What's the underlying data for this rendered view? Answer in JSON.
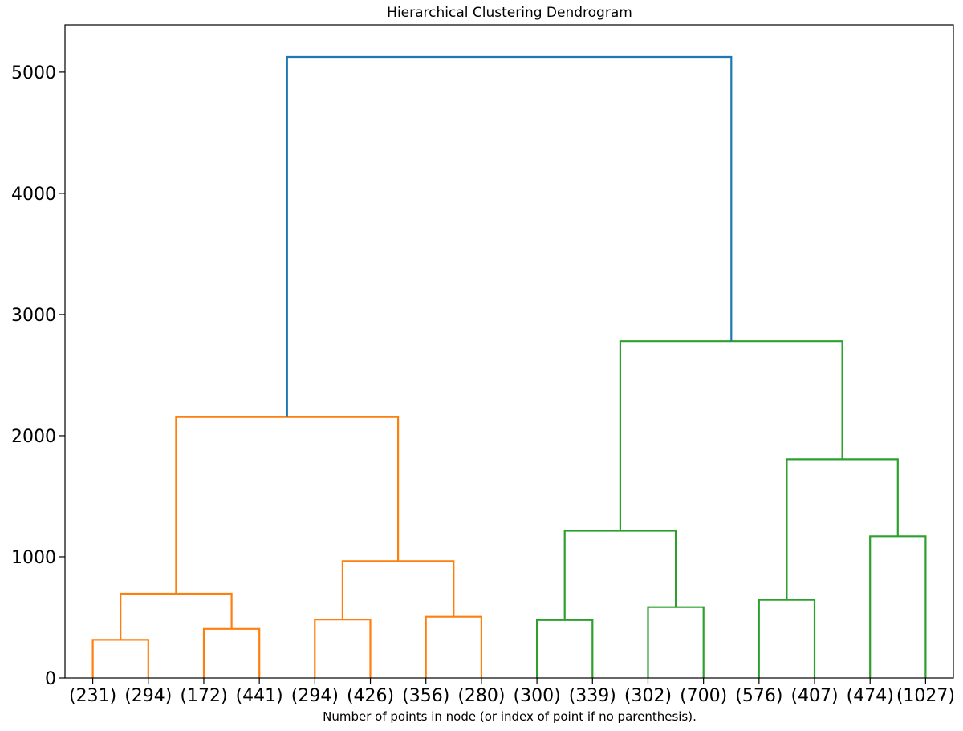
{
  "chart_data": {
    "type": "dendrogram",
    "title": "Hierarchical Clustering Dendrogram",
    "xlabel": "Number of points in node (or index of point if no parenthesis).",
    "ylabel": "",
    "ylim": [
      0,
      5390
    ],
    "yticks": [
      0,
      1000,
      2000,
      3000,
      4000,
      5000
    ],
    "leaf_labels": [
      "(231)",
      "(294)",
      "(172)",
      "(441)",
      "(294)",
      "(426)",
      "(356)",
      "(280)",
      "(300)",
      "(339)",
      "(302)",
      "(700)",
      "(576)",
      "(407)",
      "(474)",
      "(1027)"
    ],
    "colors": {
      "orange": "#ff7f0e",
      "green": "#2ca02c",
      "blue": "#1f77b4"
    },
    "merges": [
      {
        "id": "o1",
        "left": "leaf:0",
        "right": "leaf:1",
        "height": 315,
        "color": "orange"
      },
      {
        "id": "o2",
        "left": "leaf:2",
        "right": "leaf:3",
        "height": 405,
        "color": "orange"
      },
      {
        "id": "o3",
        "left": "node:o1",
        "right": "node:o2",
        "height": 695,
        "color": "orange"
      },
      {
        "id": "o4",
        "left": "leaf:4",
        "right": "leaf:5",
        "height": 483,
        "color": "orange"
      },
      {
        "id": "o5",
        "left": "leaf:6",
        "right": "leaf:7",
        "height": 505,
        "color": "orange"
      },
      {
        "id": "o6",
        "left": "node:o4",
        "right": "node:o5",
        "height": 965,
        "color": "orange"
      },
      {
        "id": "o7",
        "left": "node:o3",
        "right": "node:o6",
        "height": 2155,
        "color": "orange"
      },
      {
        "id": "g1",
        "left": "leaf:8",
        "right": "leaf:9",
        "height": 478,
        "color": "green"
      },
      {
        "id": "g2",
        "left": "leaf:10",
        "right": "leaf:11",
        "height": 585,
        "color": "green"
      },
      {
        "id": "g3",
        "left": "node:g1",
        "right": "node:g2",
        "height": 1215,
        "color": "green"
      },
      {
        "id": "g4",
        "left": "leaf:12",
        "right": "leaf:13",
        "height": 645,
        "color": "green"
      },
      {
        "id": "g5",
        "left": "leaf:14",
        "right": "leaf:15",
        "height": 1170,
        "color": "green"
      },
      {
        "id": "g6",
        "left": "node:g4",
        "right": "node:g5",
        "height": 1805,
        "color": "green"
      },
      {
        "id": "g7",
        "left": "node:g3",
        "right": "node:g6",
        "height": 2780,
        "color": "green"
      },
      {
        "id": "root",
        "left": "node:o7",
        "right": "node:g7",
        "height": 5125,
        "color": "blue"
      }
    ]
  }
}
